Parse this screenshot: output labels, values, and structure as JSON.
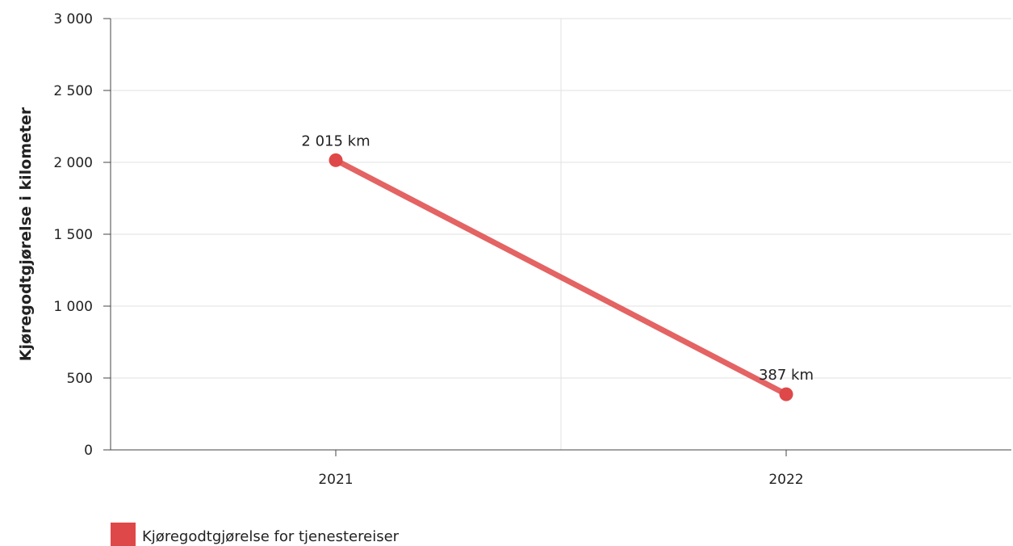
{
  "chart_data": {
    "type": "line",
    "categories": [
      "2021",
      "2022"
    ],
    "series": [
      {
        "name": "Kjøregodtgjørelse for tjenestereiser",
        "values": [
          2015,
          387
        ],
        "labels": [
          "2 015 km",
          "387 km"
        ],
        "color": "#df4848"
      }
    ],
    "ylabel": "Kjøregodtgjørelse i kilometer",
    "xlabel": "",
    "ylim": [
      0,
      3000
    ],
    "yticks": [
      0,
      500,
      1000,
      1500,
      2000,
      2500,
      3000
    ],
    "ytick_labels": [
      "0",
      "500",
      "1 000",
      "1 500",
      "2 000",
      "2 500",
      "3 000"
    ],
    "grid": true,
    "legend_position": "bottom-left"
  }
}
